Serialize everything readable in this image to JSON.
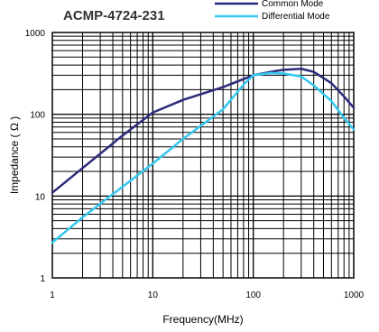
{
  "chart_data": {
    "type": "line",
    "title": "ACMP-4724-231",
    "xlabel": "Frequency(MHz)",
    "ylabel": "Impedance ( Ω )",
    "x_scale": "log",
    "y_scale": "log",
    "xlim": [
      1,
      1000
    ],
    "ylim": [
      1,
      1000
    ],
    "x_ticks": [
      {
        "value": 1,
        "label": "1"
      },
      {
        "value": 10,
        "label": "10"
      },
      {
        "value": 100,
        "label": "100"
      },
      {
        "value": 1000,
        "label": "1000"
      }
    ],
    "y_ticks": [
      {
        "value": 1,
        "label": "1"
      },
      {
        "value": 10,
        "label": "10"
      },
      {
        "value": 100,
        "label": "100"
      },
      {
        "value": 1000,
        "label": "1000"
      }
    ],
    "grid": true,
    "legend_position": "top-right",
    "series": [
      {
        "name": "Common Mode",
        "color": "#2b2b7a",
        "points": [
          [
            1,
            11
          ],
          [
            2,
            22
          ],
          [
            5,
            55
          ],
          [
            10,
            105
          ],
          [
            20,
            150
          ],
          [
            50,
            215
          ],
          [
            100,
            300
          ],
          [
            150,
            330
          ],
          [
            200,
            350
          ],
          [
            300,
            360
          ],
          [
            400,
            330
          ],
          [
            600,
            240
          ],
          [
            800,
            165
          ],
          [
            1000,
            120
          ]
        ]
      },
      {
        "name": "Differential Mode",
        "color": "#33c8f0",
        "points": [
          [
            1,
            2.7
          ],
          [
            2,
            5.5
          ],
          [
            5,
            13
          ],
          [
            10,
            25
          ],
          [
            20,
            50
          ],
          [
            50,
            115
          ],
          [
            80,
            230
          ],
          [
            100,
            300
          ],
          [
            150,
            320
          ],
          [
            200,
            315
          ],
          [
            300,
            290
          ],
          [
            400,
            225
          ],
          [
            600,
            145
          ],
          [
            800,
            90
          ],
          [
            1000,
            65
          ]
        ]
      }
    ]
  }
}
